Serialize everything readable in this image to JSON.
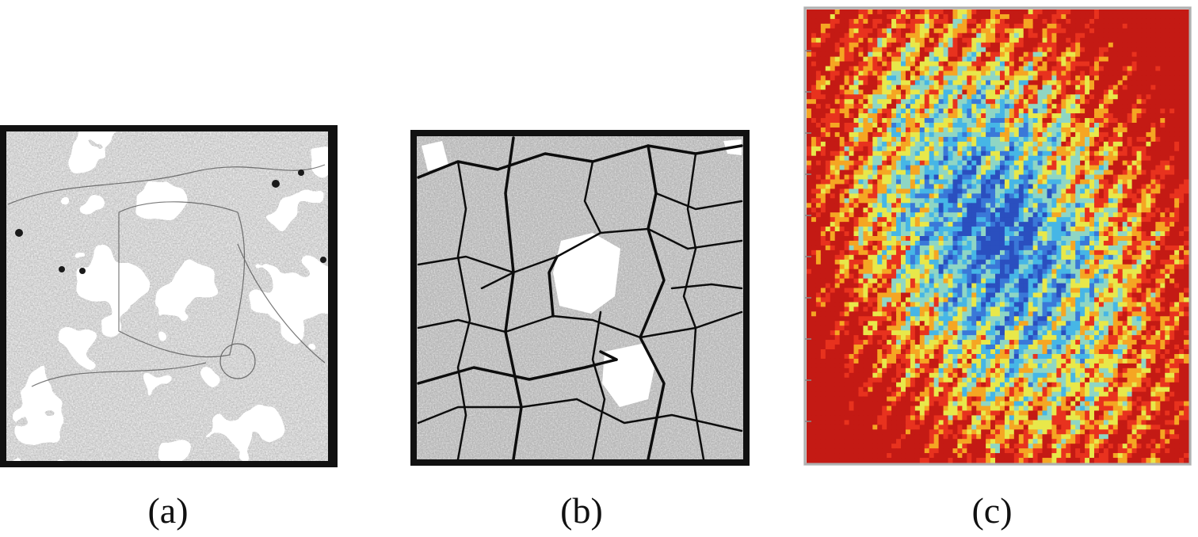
{
  "figure": {
    "panels": [
      {
        "id": "a",
        "label": "(a)",
        "content": "grayscale-micrograph-mottled"
      },
      {
        "id": "b",
        "label": "(b)",
        "content": "grayscale-micrograph-cracked"
      },
      {
        "id": "c",
        "label": "(c)",
        "content": "color-map-heat"
      }
    ]
  },
  "colors": {
    "frame": "#111111",
    "heatmap": [
      "#2a4fbf",
      "#3a78d8",
      "#46b6e6",
      "#8fd6c4",
      "#e8e84a",
      "#f5a623",
      "#e8321e",
      "#c41a14"
    ]
  }
}
